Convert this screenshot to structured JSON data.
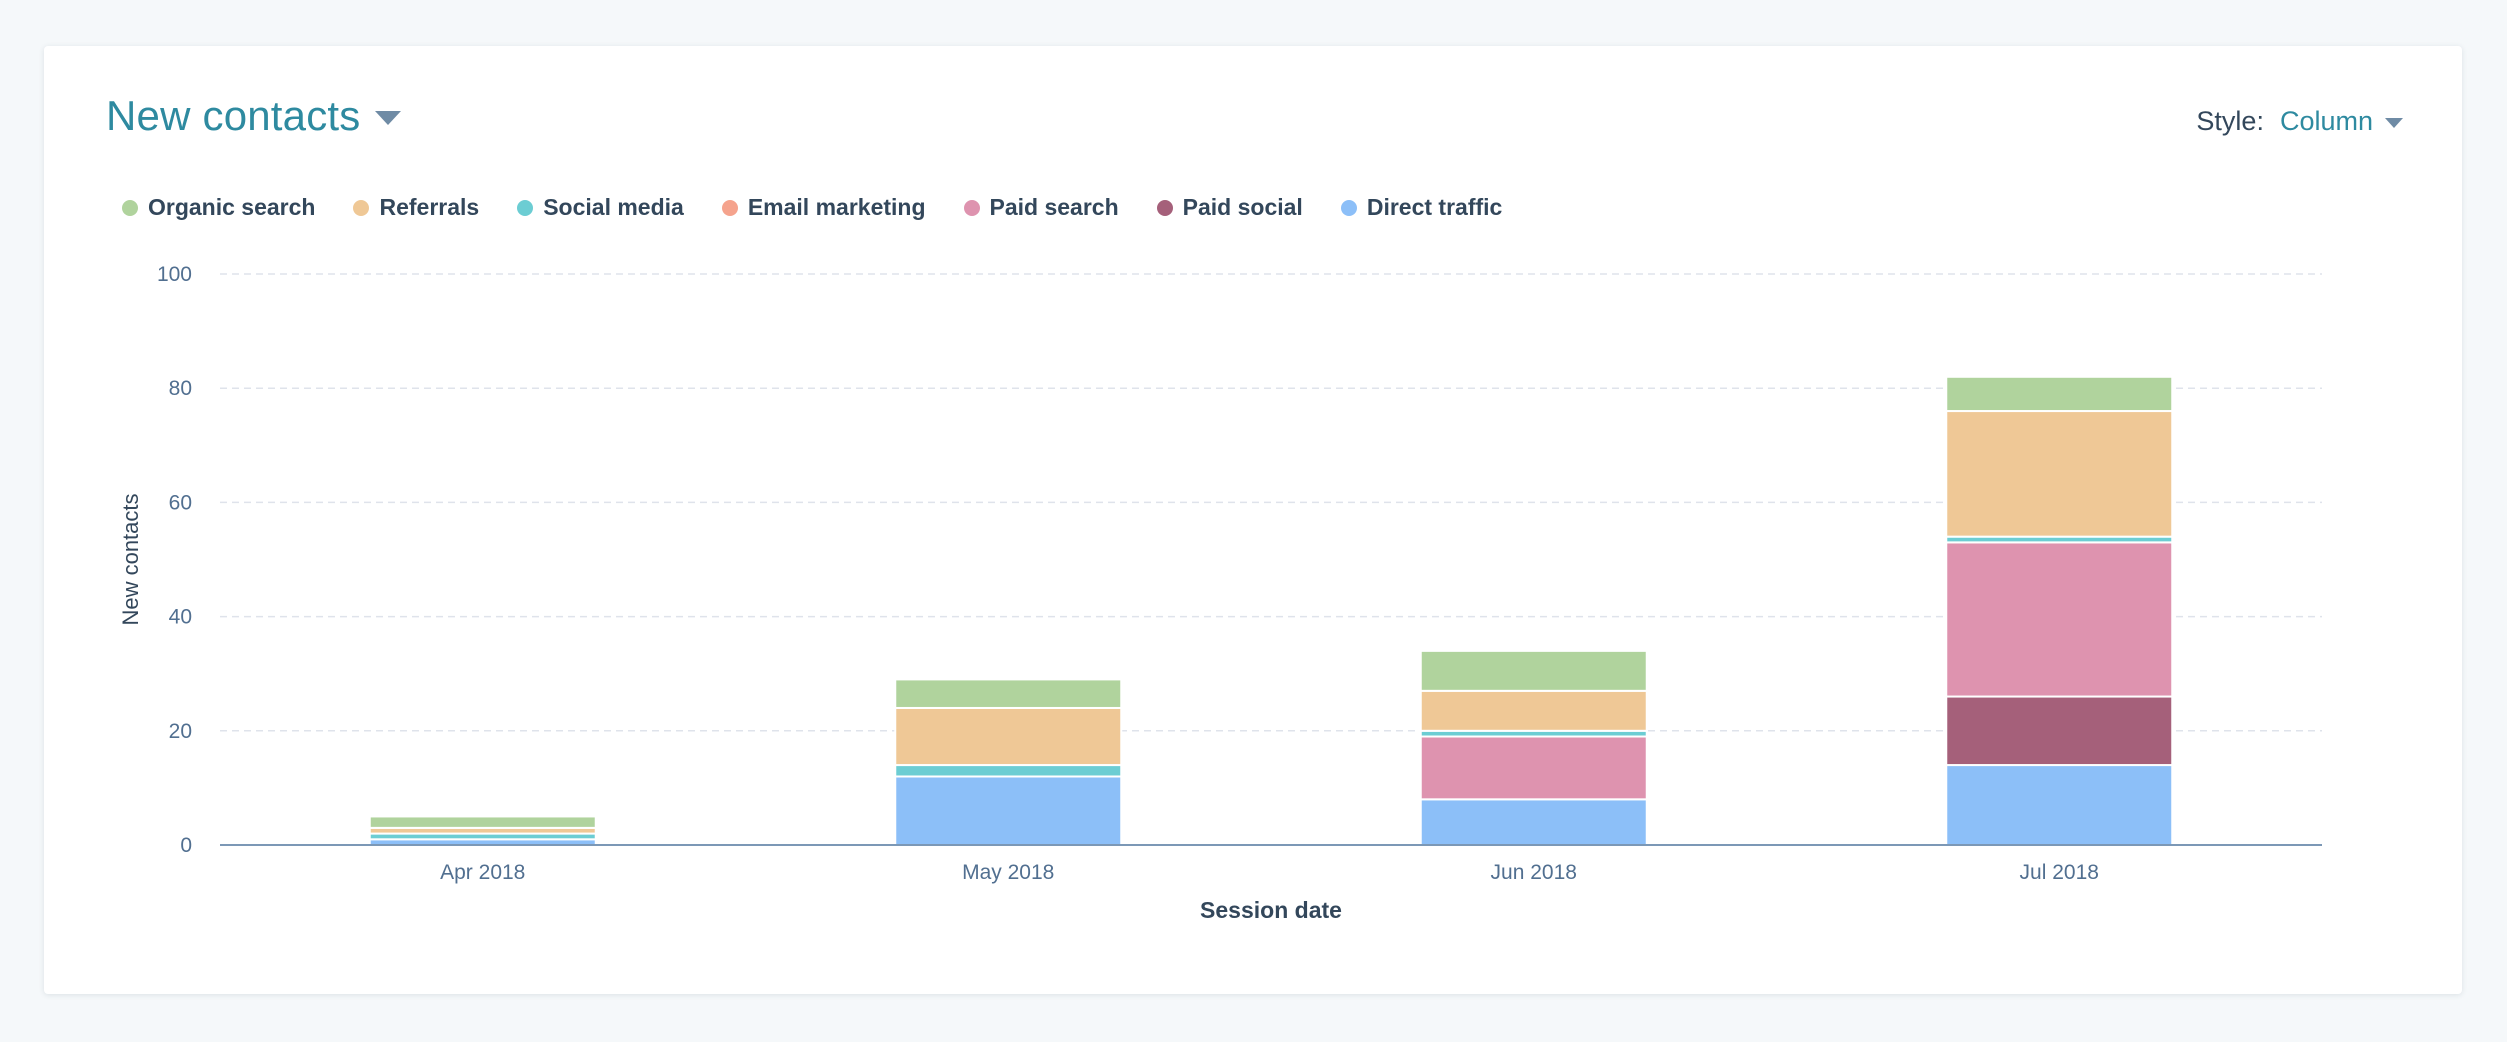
{
  "header": {
    "title": "New contacts",
    "style_label": "Style:",
    "style_value": "Column"
  },
  "legend": [
    {
      "name": "Organic search",
      "color": "#b0d39d"
    },
    {
      "name": "Referrals",
      "color": "#efc896"
    },
    {
      "name": "Social media",
      "color": "#6ccdd3"
    },
    {
      "name": "Email marketing",
      "color": "#f5a38d"
    },
    {
      "name": "Paid search",
      "color": "#de93af"
    },
    {
      "name": "Paid social",
      "color": "#a5607a"
    },
    {
      "name": "Direct traffic",
      "color": "#8cbff8"
    }
  ],
  "chart_data": {
    "type": "bar",
    "stacked": true,
    "title": "New contacts",
    "xlabel": "Session date",
    "ylabel": "New contacts",
    "ylim": [
      0,
      100
    ],
    "yticks": [
      0,
      20,
      40,
      60,
      80,
      100
    ],
    "grid": true,
    "legend_position": "top-left",
    "categories": [
      "Apr 2018",
      "May 2018",
      "Jun 2018",
      "Jul 2018"
    ],
    "series": [
      {
        "name": "Direct traffic",
        "color": "#8cbff8",
        "values": [
          1,
          12,
          8,
          14
        ]
      },
      {
        "name": "Paid social",
        "color": "#a5607a",
        "values": [
          0,
          0,
          0,
          12
        ]
      },
      {
        "name": "Paid search",
        "color": "#de93af",
        "values": [
          0,
          0,
          11,
          27
        ]
      },
      {
        "name": "Email marketing",
        "color": "#f5a38d",
        "values": [
          0,
          0,
          0,
          0
        ]
      },
      {
        "name": "Social media",
        "color": "#6ccdd3",
        "values": [
          1,
          2,
          1,
          1
        ]
      },
      {
        "name": "Referrals",
        "color": "#efc896",
        "values": [
          1,
          10,
          7,
          22
        ]
      },
      {
        "name": "Organic search",
        "color": "#b0d39d",
        "values": [
          2,
          5,
          7,
          6
        ]
      }
    ]
  }
}
